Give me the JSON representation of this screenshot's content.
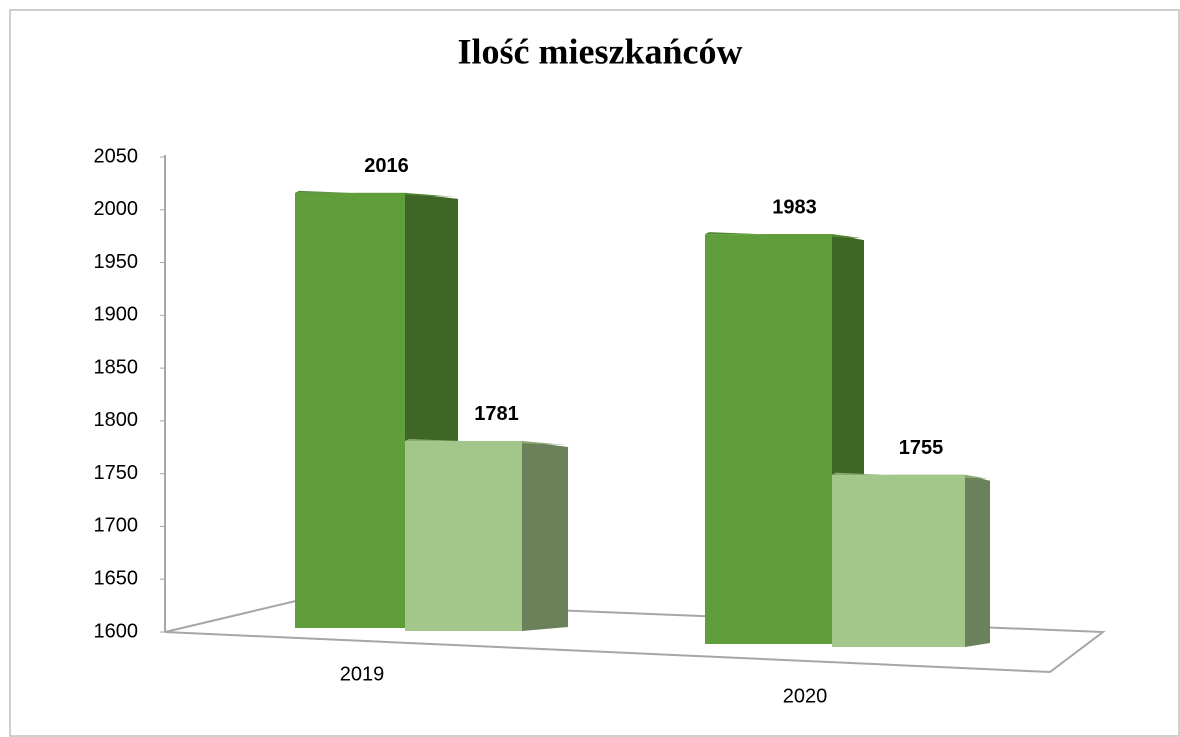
{
  "chart_data": {
    "type": "bar3d",
    "title": "Ilość mieszkańców",
    "categories": [
      "2019",
      "2020"
    ],
    "series": [
      {
        "color": "#5f9e3a",
        "values": [
          2016,
          1983
        ]
      },
      {
        "color": "#a3c68a",
        "values": [
          1781,
          1755
        ]
      }
    ],
    "ylim": [
      1600,
      2050
    ],
    "yticks": [
      1600,
      1650,
      1700,
      1750,
      1800,
      1850,
      1900,
      1950,
      2000,
      2050
    ],
    "grid": false
  }
}
